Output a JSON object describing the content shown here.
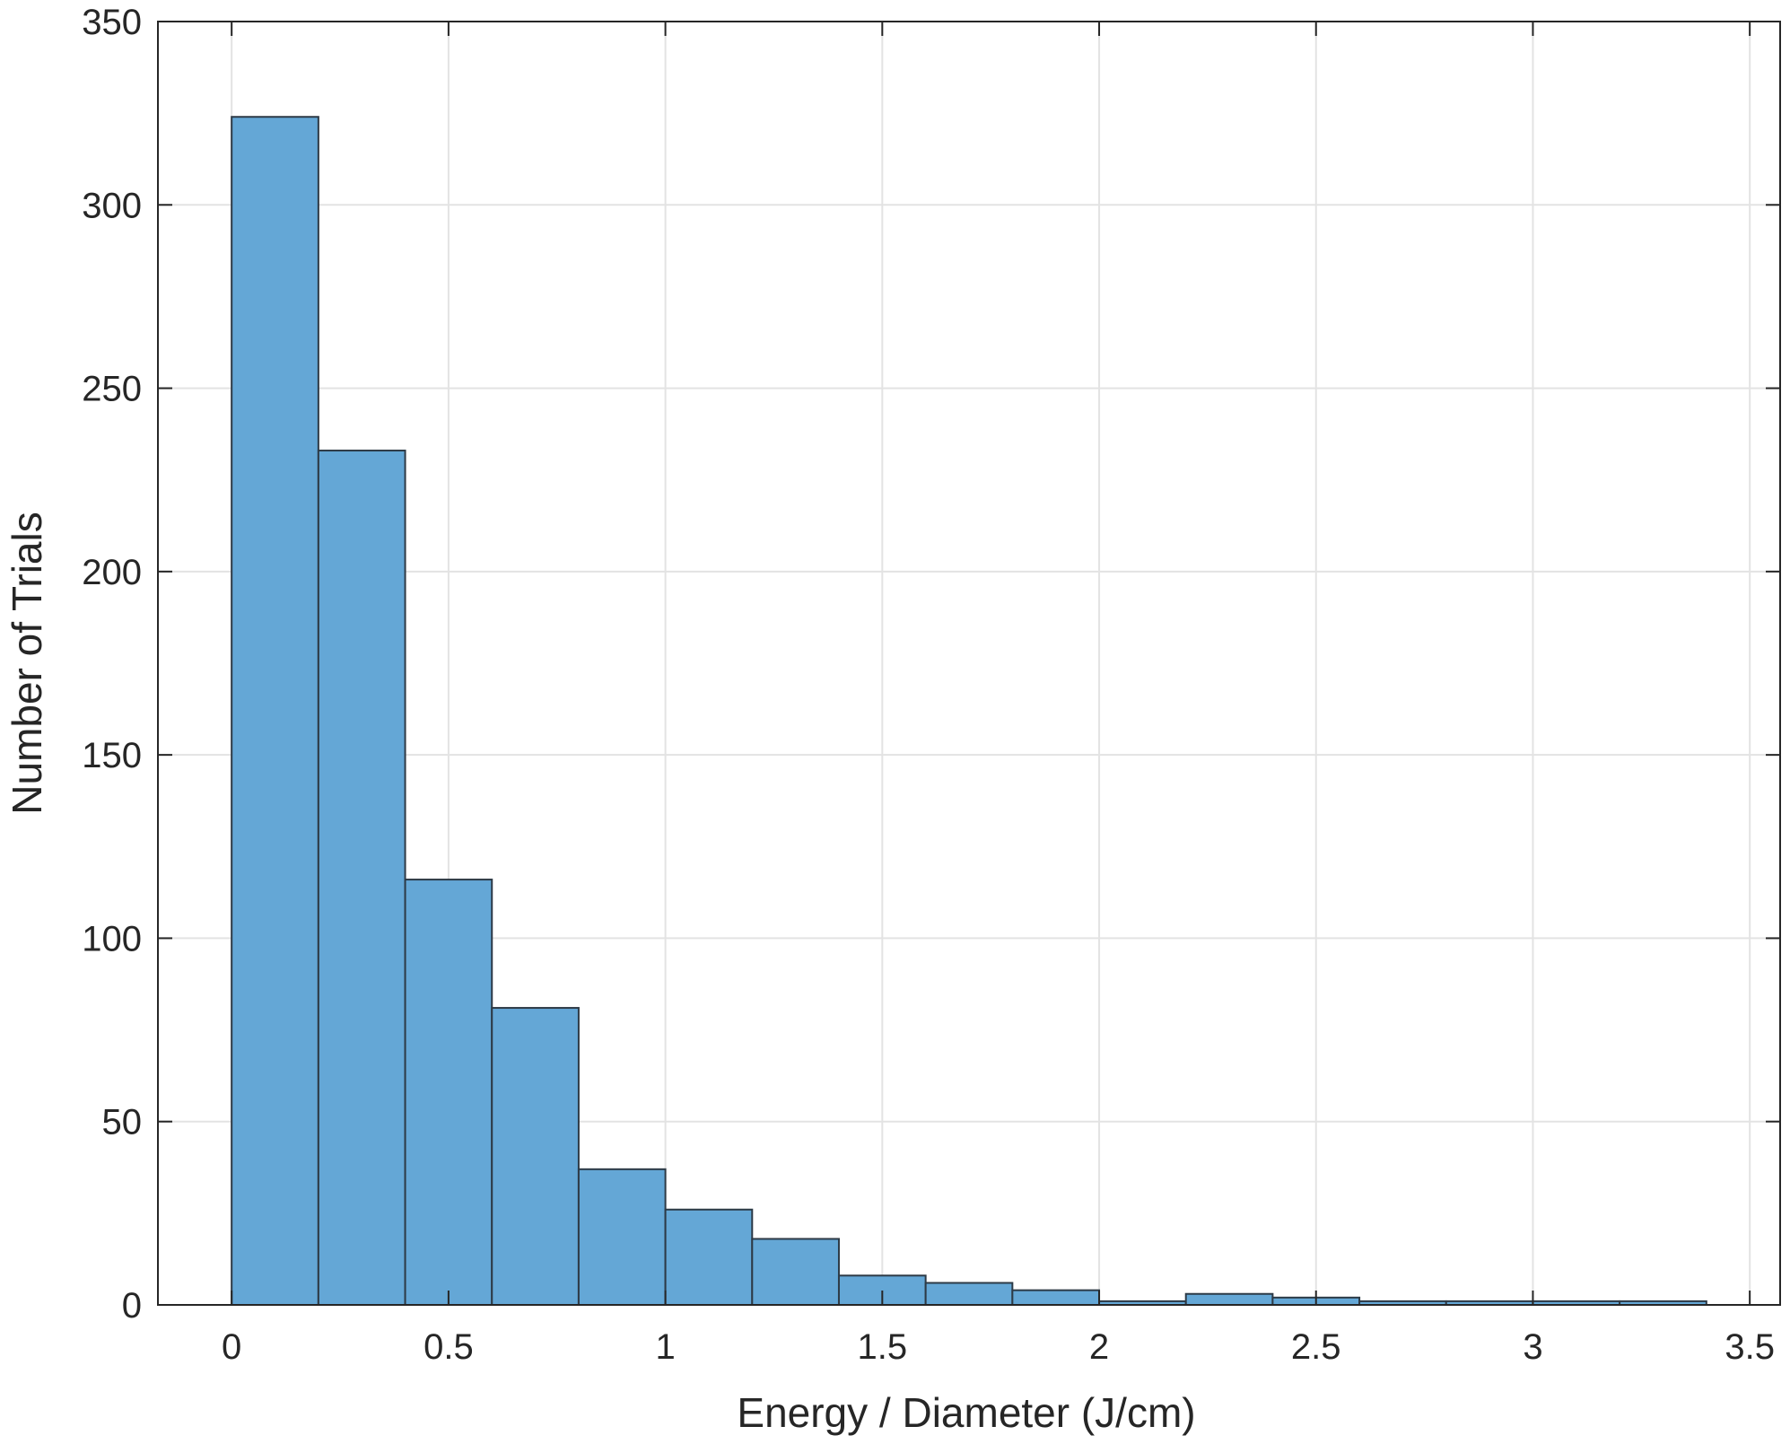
{
  "chart_data": {
    "type": "bar",
    "subtype": "histogram",
    "title": "",
    "xlabel": "Energy / Diameter (J/cm)",
    "ylabel": "Number of Trials",
    "xlim": [
      -0.17,
      3.57
    ],
    "ylim": [
      0,
      350
    ],
    "xticks": [
      0,
      0.5,
      1,
      1.5,
      2,
      2.5,
      3,
      3.5
    ],
    "xtick_labels": [
      "0",
      "0.5",
      "1",
      "1.5",
      "2",
      "2.5",
      "3",
      "3.5"
    ],
    "yticks": [
      0,
      50,
      100,
      150,
      200,
      250,
      300,
      350
    ],
    "ytick_labels": [
      "0",
      "50",
      "100",
      "150",
      "200",
      "250",
      "300",
      "350"
    ],
    "grid": true,
    "bar_color": "#64a7d6",
    "edge_color": "#2d3a46",
    "bins": [
      {
        "x0": 0.0,
        "x1": 0.2,
        "count": 324
      },
      {
        "x0": 0.2,
        "x1": 0.4,
        "count": 233
      },
      {
        "x0": 0.4,
        "x1": 0.6,
        "count": 116
      },
      {
        "x0": 0.6,
        "x1": 0.8,
        "count": 81
      },
      {
        "x0": 0.8,
        "x1": 1.0,
        "count": 37
      },
      {
        "x0": 1.0,
        "x1": 1.2,
        "count": 26
      },
      {
        "x0": 1.2,
        "x1": 1.4,
        "count": 18
      },
      {
        "x0": 1.4,
        "x1": 1.6,
        "count": 8
      },
      {
        "x0": 1.6,
        "x1": 1.8,
        "count": 6
      },
      {
        "x0": 1.8,
        "x1": 2.0,
        "count": 4
      },
      {
        "x0": 2.0,
        "x1": 2.2,
        "count": 1
      },
      {
        "x0": 2.2,
        "x1": 2.4,
        "count": 3
      },
      {
        "x0": 2.4,
        "x1": 2.6,
        "count": 2
      },
      {
        "x0": 2.6,
        "x1": 2.8,
        "count": 1
      },
      {
        "x0": 2.8,
        "x1": 3.0,
        "count": 1
      },
      {
        "x0": 3.0,
        "x1": 3.2,
        "count": 1
      },
      {
        "x0": 3.2,
        "x1": 3.4,
        "count": 1
      }
    ]
  }
}
